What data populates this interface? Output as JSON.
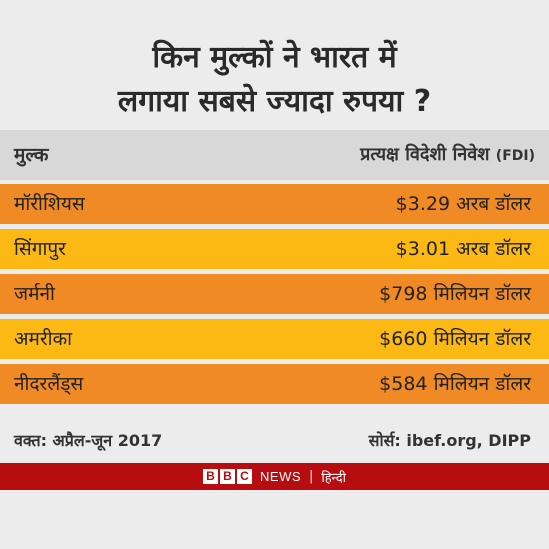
{
  "title_line1": "किन मुल्कों ने भारत में",
  "title_line2": "लगाया सबसे ज्यादा रुपया ?",
  "header": {
    "country": "मुल्क",
    "investment": "प्रत्यक्ष विदेशी निवेश",
    "investment_abbr": "(FDI)"
  },
  "chart_data": {
    "type": "table",
    "title": "किन मुल्कों ने भारत में लगाया सबसे ज्यादा रुपया ?",
    "columns": [
      "मुल्क",
      "प्रत्यक्ष विदेशी निवेश (FDI)"
    ],
    "rows": [
      {
        "country": "मॉरीशियस",
        "amount": "$3.29 अरब डॉलर",
        "value_usd_millions": 3290,
        "color": "#f08a24"
      },
      {
        "country": "सिंगापुर",
        "amount": "$3.01 अरब डॉलर",
        "value_usd_millions": 3010,
        "color": "#fdb913"
      },
      {
        "country": "जर्मनी",
        "amount": "$798 मिलियन डॉलर",
        "value_usd_millions": 798,
        "color": "#f08a24"
      },
      {
        "country": "अमरीका",
        "amount": "$660 मिलियन डॉलर",
        "value_usd_millions": 660,
        "color": "#fdb913"
      },
      {
        "country": "नीदरलैंड्स",
        "amount": "$584 मिलियन डॉलर",
        "value_usd_millions": 584,
        "color": "#f08a24"
      }
    ]
  },
  "footer": {
    "period": "वक्त: अप्रैल-जून 2017",
    "source": "सोर्स: ibef.org, DIPP"
  },
  "brand": {
    "letters": [
      "B",
      "B",
      "C"
    ],
    "news": "NEWS",
    "separator": "|",
    "language": "हिन्दी"
  },
  "colors": {
    "background": "#ececec",
    "header_band": "#d8d8d8",
    "orange": "#f08a24",
    "yellow": "#fdb913",
    "bbc_red": "#b70d10"
  }
}
